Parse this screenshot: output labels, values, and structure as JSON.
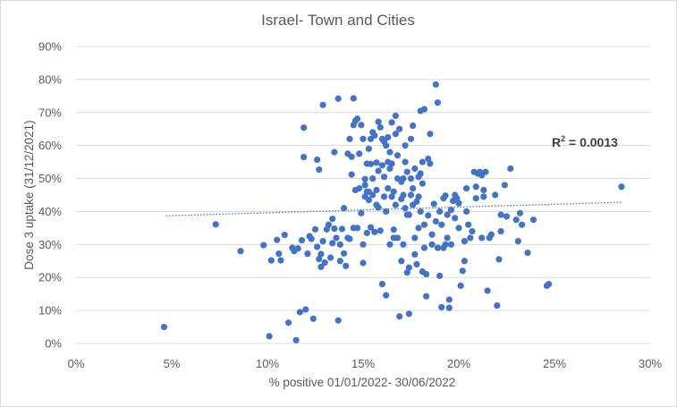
{
  "chart_data": {
    "type": "scatter",
    "title": "Israel- Town and Cities",
    "xlabel": "% positive 01/01/2022- 30/06/2022",
    "ylabel": "Dose 3 uptake (31/12/2021)",
    "xlim": [
      0,
      0.3
    ],
    "ylim": [
      0,
      0.9
    ],
    "x_ticks": [
      0,
      0.05,
      0.1,
      0.15,
      0.2,
      0.25,
      0.3
    ],
    "x_tick_labels": [
      "0%",
      "5%",
      "10%",
      "15%",
      "20%",
      "25%",
      "30%"
    ],
    "y_ticks": [
      0,
      0.1,
      0.2,
      0.3,
      0.4,
      0.5,
      0.6,
      0.7,
      0.8,
      0.9
    ],
    "y_tick_labels": [
      "0%",
      "10%",
      "20%",
      "30%",
      "40%",
      "50%",
      "60%",
      "70%",
      "80%",
      "90%"
    ],
    "gridlines": true,
    "marker_color": "#4472c4",
    "trendline": {
      "type": "linear",
      "x_start": 0.047,
      "y_start": 0.387,
      "x_end": 0.285,
      "y_end": 0.428,
      "style": "dotted"
    },
    "annotation_r2": {
      "label": "R",
      "sup": "2",
      "rest": " = 0.0013"
    },
    "points": [
      [
        0.046,
        0.05
      ],
      [
        0.073,
        0.361
      ],
      [
        0.086,
        0.28
      ],
      [
        0.098,
        0.298
      ],
      [
        0.101,
        0.022
      ],
      [
        0.102,
        0.252
      ],
      [
        0.105,
        0.314
      ],
      [
        0.106,
        0.272
      ],
      [
        0.107,
        0.252
      ],
      [
        0.109,
        0.329
      ],
      [
        0.111,
        0.063
      ],
      [
        0.113,
        0.29
      ],
      [
        0.114,
        0.28
      ],
      [
        0.115,
        0.01
      ],
      [
        0.116,
        0.288
      ],
      [
        0.117,
        0.095
      ],
      [
        0.118,
        0.313
      ],
      [
        0.119,
        0.565
      ],
      [
        0.119,
        0.654
      ],
      [
        0.12,
        0.103
      ],
      [
        0.121,
        0.272
      ],
      [
        0.122,
        0.325
      ],
      [
        0.123,
        0.317
      ],
      [
        0.124,
        0.075
      ],
      [
        0.125,
        0.346
      ],
      [
        0.126,
        0.557
      ],
      [
        0.126,
        0.293
      ],
      [
        0.127,
        0.527
      ],
      [
        0.127,
        0.256
      ],
      [
        0.128,
        0.232
      ],
      [
        0.128,
        0.271
      ],
      [
        0.129,
        0.723
      ],
      [
        0.129,
        0.31
      ],
      [
        0.13,
        0.245
      ],
      [
        0.131,
        0.346
      ],
      [
        0.132,
        0.36
      ],
      [
        0.133,
        0.26
      ],
      [
        0.134,
        0.304
      ],
      [
        0.134,
        0.378
      ],
      [
        0.135,
        0.58
      ],
      [
        0.135,
        0.348
      ],
      [
        0.136,
        0.32
      ],
      [
        0.137,
        0.742
      ],
      [
        0.137,
        0.07
      ],
      [
        0.138,
        0.25
      ],
      [
        0.138,
        0.3
      ],
      [
        0.139,
        0.347
      ],
      [
        0.14,
        0.41
      ],
      [
        0.14,
        0.273
      ],
      [
        0.141,
        0.235
      ],
      [
        0.142,
        0.32
      ],
      [
        0.142,
        0.575
      ],
      [
        0.143,
        0.317
      ],
      [
        0.143,
        0.62
      ],
      [
        0.144,
        0.566
      ],
      [
        0.144,
        0.512
      ],
      [
        0.145,
        0.743
      ],
      [
        0.145,
        0.35
      ],
      [
        0.145,
        0.662
      ],
      [
        0.146,
        0.465
      ],
      [
        0.146,
        0.675
      ],
      [
        0.147,
        0.681
      ],
      [
        0.147,
        0.35
      ],
      [
        0.148,
        0.47
      ],
      [
        0.148,
        0.575
      ],
      [
        0.149,
        0.395
      ],
      [
        0.149,
        0.662
      ],
      [
        0.15,
        0.62
      ],
      [
        0.15,
        0.244
      ],
      [
        0.15,
        0.3
      ],
      [
        0.151,
        0.48
      ],
      [
        0.151,
        0.445
      ],
      [
        0.151,
        0.498
      ],
      [
        0.152,
        0.545
      ],
      [
        0.152,
        0.46
      ],
      [
        0.152,
        0.335
      ],
      [
        0.153,
        0.435
      ],
      [
        0.153,
        0.59
      ],
      [
        0.153,
        0.46
      ],
      [
        0.154,
        0.544
      ],
      [
        0.154,
        0.352
      ],
      [
        0.154,
        0.62
      ],
      [
        0.155,
        0.45
      ],
      [
        0.155,
        0.5
      ],
      [
        0.155,
        0.64
      ],
      [
        0.156,
        0.63
      ],
      [
        0.156,
        0.338
      ],
      [
        0.157,
        0.548
      ],
      [
        0.157,
        0.465
      ],
      [
        0.157,
        0.42
      ],
      [
        0.158,
        0.412
      ],
      [
        0.158,
        0.523
      ],
      [
        0.158,
        0.672
      ],
      [
        0.159,
        0.655
      ],
      [
        0.159,
        0.342
      ],
      [
        0.16,
        0.62
      ],
      [
        0.16,
        0.54
      ],
      [
        0.16,
        0.18
      ],
      [
        0.161,
        0.505
      ],
      [
        0.161,
        0.445
      ],
      [
        0.161,
        0.612
      ],
      [
        0.162,
        0.6
      ],
      [
        0.162,
        0.4
      ],
      [
        0.162,
        0.146
      ],
      [
        0.163,
        0.625
      ],
      [
        0.163,
        0.55
      ],
      [
        0.163,
        0.47
      ],
      [
        0.164,
        0.58
      ],
      [
        0.164,
        0.3
      ],
      [
        0.164,
        0.53
      ],
      [
        0.165,
        0.67
      ],
      [
        0.165,
        0.545
      ],
      [
        0.165,
        0.445
      ],
      [
        0.166,
        0.46
      ],
      [
        0.166,
        0.32
      ],
      [
        0.166,
        0.345
      ],
      [
        0.167,
        0.635
      ],
      [
        0.167,
        0.69
      ],
      [
        0.167,
        0.42
      ],
      [
        0.168,
        0.57
      ],
      [
        0.168,
        0.5
      ],
      [
        0.168,
        0.32
      ],
      [
        0.169,
        0.082
      ],
      [
        0.169,
        0.65
      ],
      [
        0.17,
        0.49
      ],
      [
        0.17,
        0.438
      ],
      [
        0.17,
        0.25
      ],
      [
        0.171,
        0.5
      ],
      [
        0.171,
        0.3
      ],
      [
        0.171,
        0.45
      ],
      [
        0.172,
        0.41
      ],
      [
        0.172,
        0.55
      ],
      [
        0.172,
        0.6
      ],
      [
        0.173,
        0.39
      ],
      [
        0.173,
        0.52
      ],
      [
        0.173,
        0.215
      ],
      [
        0.174,
        0.39
      ],
      [
        0.174,
        0.23
      ],
      [
        0.174,
        0.09
      ],
      [
        0.175,
        0.5
      ],
      [
        0.175,
        0.45
      ],
      [
        0.175,
        0.62
      ],
      [
        0.176,
        0.42
      ],
      [
        0.176,
        0.66
      ],
      [
        0.176,
        0.47
      ],
      [
        0.177,
        0.27
      ],
      [
        0.177,
        0.53
      ],
      [
        0.177,
        0.32
      ],
      [
        0.178,
        0.43
      ],
      [
        0.178,
        0.24
      ],
      [
        0.179,
        0.35
      ],
      [
        0.179,
        0.505
      ],
      [
        0.179,
        0.445
      ],
      [
        0.18,
        0.4
      ],
      [
        0.18,
        0.515
      ],
      [
        0.18,
        0.705
      ],
      [
        0.181,
        0.55
      ],
      [
        0.181,
        0.485
      ],
      [
        0.181,
        0.218
      ],
      [
        0.182,
        0.71
      ],
      [
        0.182,
        0.36
      ],
      [
        0.182,
        0.29
      ],
      [
        0.183,
        0.143
      ],
      [
        0.183,
        0.21
      ],
      [
        0.184,
        0.56
      ],
      [
        0.184,
        0.388
      ],
      [
        0.185,
        0.635
      ],
      [
        0.185,
        0.545
      ],
      [
        0.186,
        0.3
      ],
      [
        0.186,
        0.33
      ],
      [
        0.187,
        0.423
      ],
      [
        0.188,
        0.37
      ],
      [
        0.188,
        0.785
      ],
      [
        0.189,
        0.73
      ],
      [
        0.189,
        0.29
      ],
      [
        0.19,
        0.4
      ],
      [
        0.19,
        0.205
      ],
      [
        0.191,
        0.11
      ],
      [
        0.191,
        0.36
      ],
      [
        0.192,
        0.44
      ],
      [
        0.192,
        0.29
      ],
      [
        0.193,
        0.3
      ],
      [
        0.193,
        0.448
      ],
      [
        0.194,
        0.39
      ],
      [
        0.194,
        0.32
      ],
      [
        0.195,
        0.133
      ],
      [
        0.195,
        0.108
      ],
      [
        0.196,
        0.405
      ],
      [
        0.196,
        0.3
      ],
      [
        0.197,
        0.432
      ],
      [
        0.198,
        0.45
      ],
      [
        0.198,
        0.38
      ],
      [
        0.199,
        0.44
      ],
      [
        0.2,
        0.425
      ],
      [
        0.2,
        0.35
      ],
      [
        0.201,
        0.175
      ],
      [
        0.202,
        0.22
      ],
      [
        0.203,
        0.25
      ],
      [
        0.203,
        0.31
      ],
      [
        0.204,
        0.4
      ],
      [
        0.204,
        0.47
      ],
      [
        0.205,
        0.36
      ],
      [
        0.206,
        0.32
      ],
      [
        0.207,
        0.34
      ],
      [
        0.208,
        0.52
      ],
      [
        0.209,
        0.475
      ],
      [
        0.209,
        0.44
      ],
      [
        0.21,
        0.515
      ],
      [
        0.211,
        0.52
      ],
      [
        0.212,
        0.51
      ],
      [
        0.212,
        0.32
      ],
      [
        0.213,
        0.445
      ],
      [
        0.213,
        0.465
      ],
      [
        0.214,
        0.52
      ],
      [
        0.215,
        0.16
      ],
      [
        0.216,
        0.32
      ],
      [
        0.217,
        0.33
      ],
      [
        0.219,
        0.45
      ],
      [
        0.22,
        0.115
      ],
      [
        0.221,
        0.255
      ],
      [
        0.222,
        0.39
      ],
      [
        0.222,
        0.34
      ],
      [
        0.224,
        0.48
      ],
      [
        0.225,
        0.385
      ],
      [
        0.227,
        0.53
      ],
      [
        0.23,
        0.375
      ],
      [
        0.231,
        0.31
      ],
      [
        0.232,
        0.395
      ],
      [
        0.233,
        0.36
      ],
      [
        0.236,
        0.275
      ],
      [
        0.239,
        0.375
      ],
      [
        0.246,
        0.175
      ],
      [
        0.247,
        0.18
      ],
      [
        0.285,
        0.475
      ]
    ]
  }
}
